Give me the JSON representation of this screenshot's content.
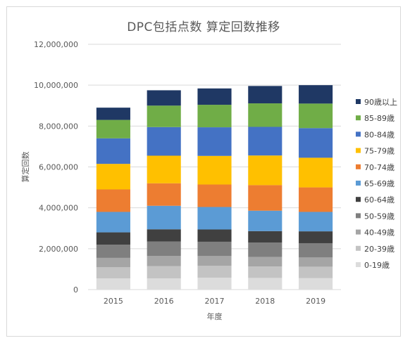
{
  "chart_data": {
    "type": "bar",
    "stacked": true,
    "title": "DPC包括点数 算定回数推移",
    "xlabel": "年度",
    "ylabel": "算定回数",
    "categories": [
      "2015",
      "2016",
      "2017",
      "2018",
      "2019"
    ],
    "ylim": [
      0,
      12000000
    ],
    "yticks": [
      0,
      2000000,
      4000000,
      6000000,
      8000000,
      10000000,
      12000000
    ],
    "ytick_labels": [
      "0",
      "2,000,000",
      "4,000,000",
      "6,000,000",
      "8,000,000",
      "10,000,000",
      "12,000,000"
    ],
    "grid": true,
    "legend_position": "right",
    "series": [
      {
        "name": "0-19歳",
        "color": "#dcdcdc",
        "values": [
          550000,
          550000,
          580000,
          570000,
          560000
        ]
      },
      {
        "name": "20-39歳",
        "color": "#c3c3c3",
        "values": [
          550000,
          600000,
          580000,
          560000,
          560000
        ]
      },
      {
        "name": "40-49歳",
        "color": "#a5a5a5",
        "values": [
          450000,
          500000,
          480000,
          470000,
          450000
        ]
      },
      {
        "name": "50-59歳",
        "color": "#7f7f7f",
        "values": [
          650000,
          700000,
          700000,
          700000,
          700000
        ]
      },
      {
        "name": "60-64歳",
        "color": "#404040",
        "values": [
          600000,
          600000,
          600000,
          560000,
          580000
        ]
      },
      {
        "name": "65-69歳",
        "color": "#5b9bd5",
        "values": [
          1000000,
          1150000,
          1100000,
          1000000,
          950000
        ]
      },
      {
        "name": "70-74歳",
        "color": "#ed7d31",
        "values": [
          1100000,
          1100000,
          1100000,
          1250000,
          1200000
        ]
      },
      {
        "name": "75-79歳",
        "color": "#ffc000",
        "values": [
          1250000,
          1350000,
          1400000,
          1450000,
          1450000
        ]
      },
      {
        "name": "80-84歳",
        "color": "#4472c4",
        "values": [
          1250000,
          1400000,
          1400000,
          1400000,
          1450000
        ]
      },
      {
        "name": "85-89歳",
        "color": "#70ad47",
        "values": [
          900000,
          1050000,
          1100000,
          1150000,
          1200000
        ]
      },
      {
        "name": "90歳以上",
        "color": "#1f3864",
        "values": [
          600000,
          750000,
          800000,
          850000,
          900000
        ]
      }
    ]
  }
}
